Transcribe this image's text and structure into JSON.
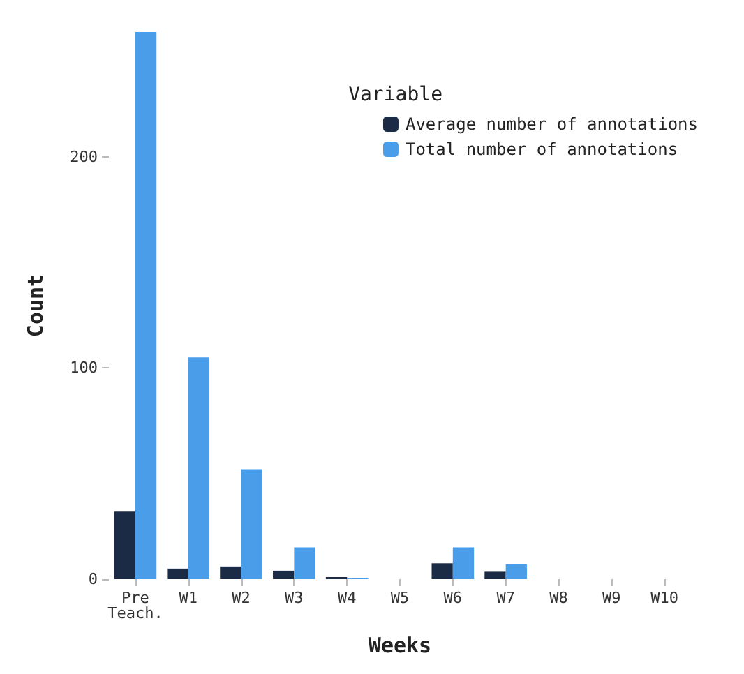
{
  "chart_data": {
    "type": "bar",
    "xlabel": "Weeks",
    "ylabel": "Count",
    "legend_title": "Variable",
    "legend": "top right",
    "grid": false,
    "categories": [
      "Pre\nTeach.",
      "W1",
      "W2",
      "W3",
      "W4",
      "W5",
      "W6",
      "W7",
      "W8",
      "W9",
      "W10"
    ],
    "series": [
      {
        "name": "Average number of annotations",
        "color": "#1b2b45",
        "values": [
          32,
          5,
          6,
          4,
          1,
          null,
          7.5,
          3.5,
          null,
          null,
          null
        ]
      },
      {
        "name": "Total number of annotations",
        "color": "#4a9de8",
        "values": [
          259,
          105,
          52,
          15,
          0.5,
          null,
          15,
          7,
          null,
          null,
          null
        ]
      }
    ],
    "ylim": [
      0,
      259
    ],
    "yticks": [
      0,
      100,
      200
    ]
  }
}
